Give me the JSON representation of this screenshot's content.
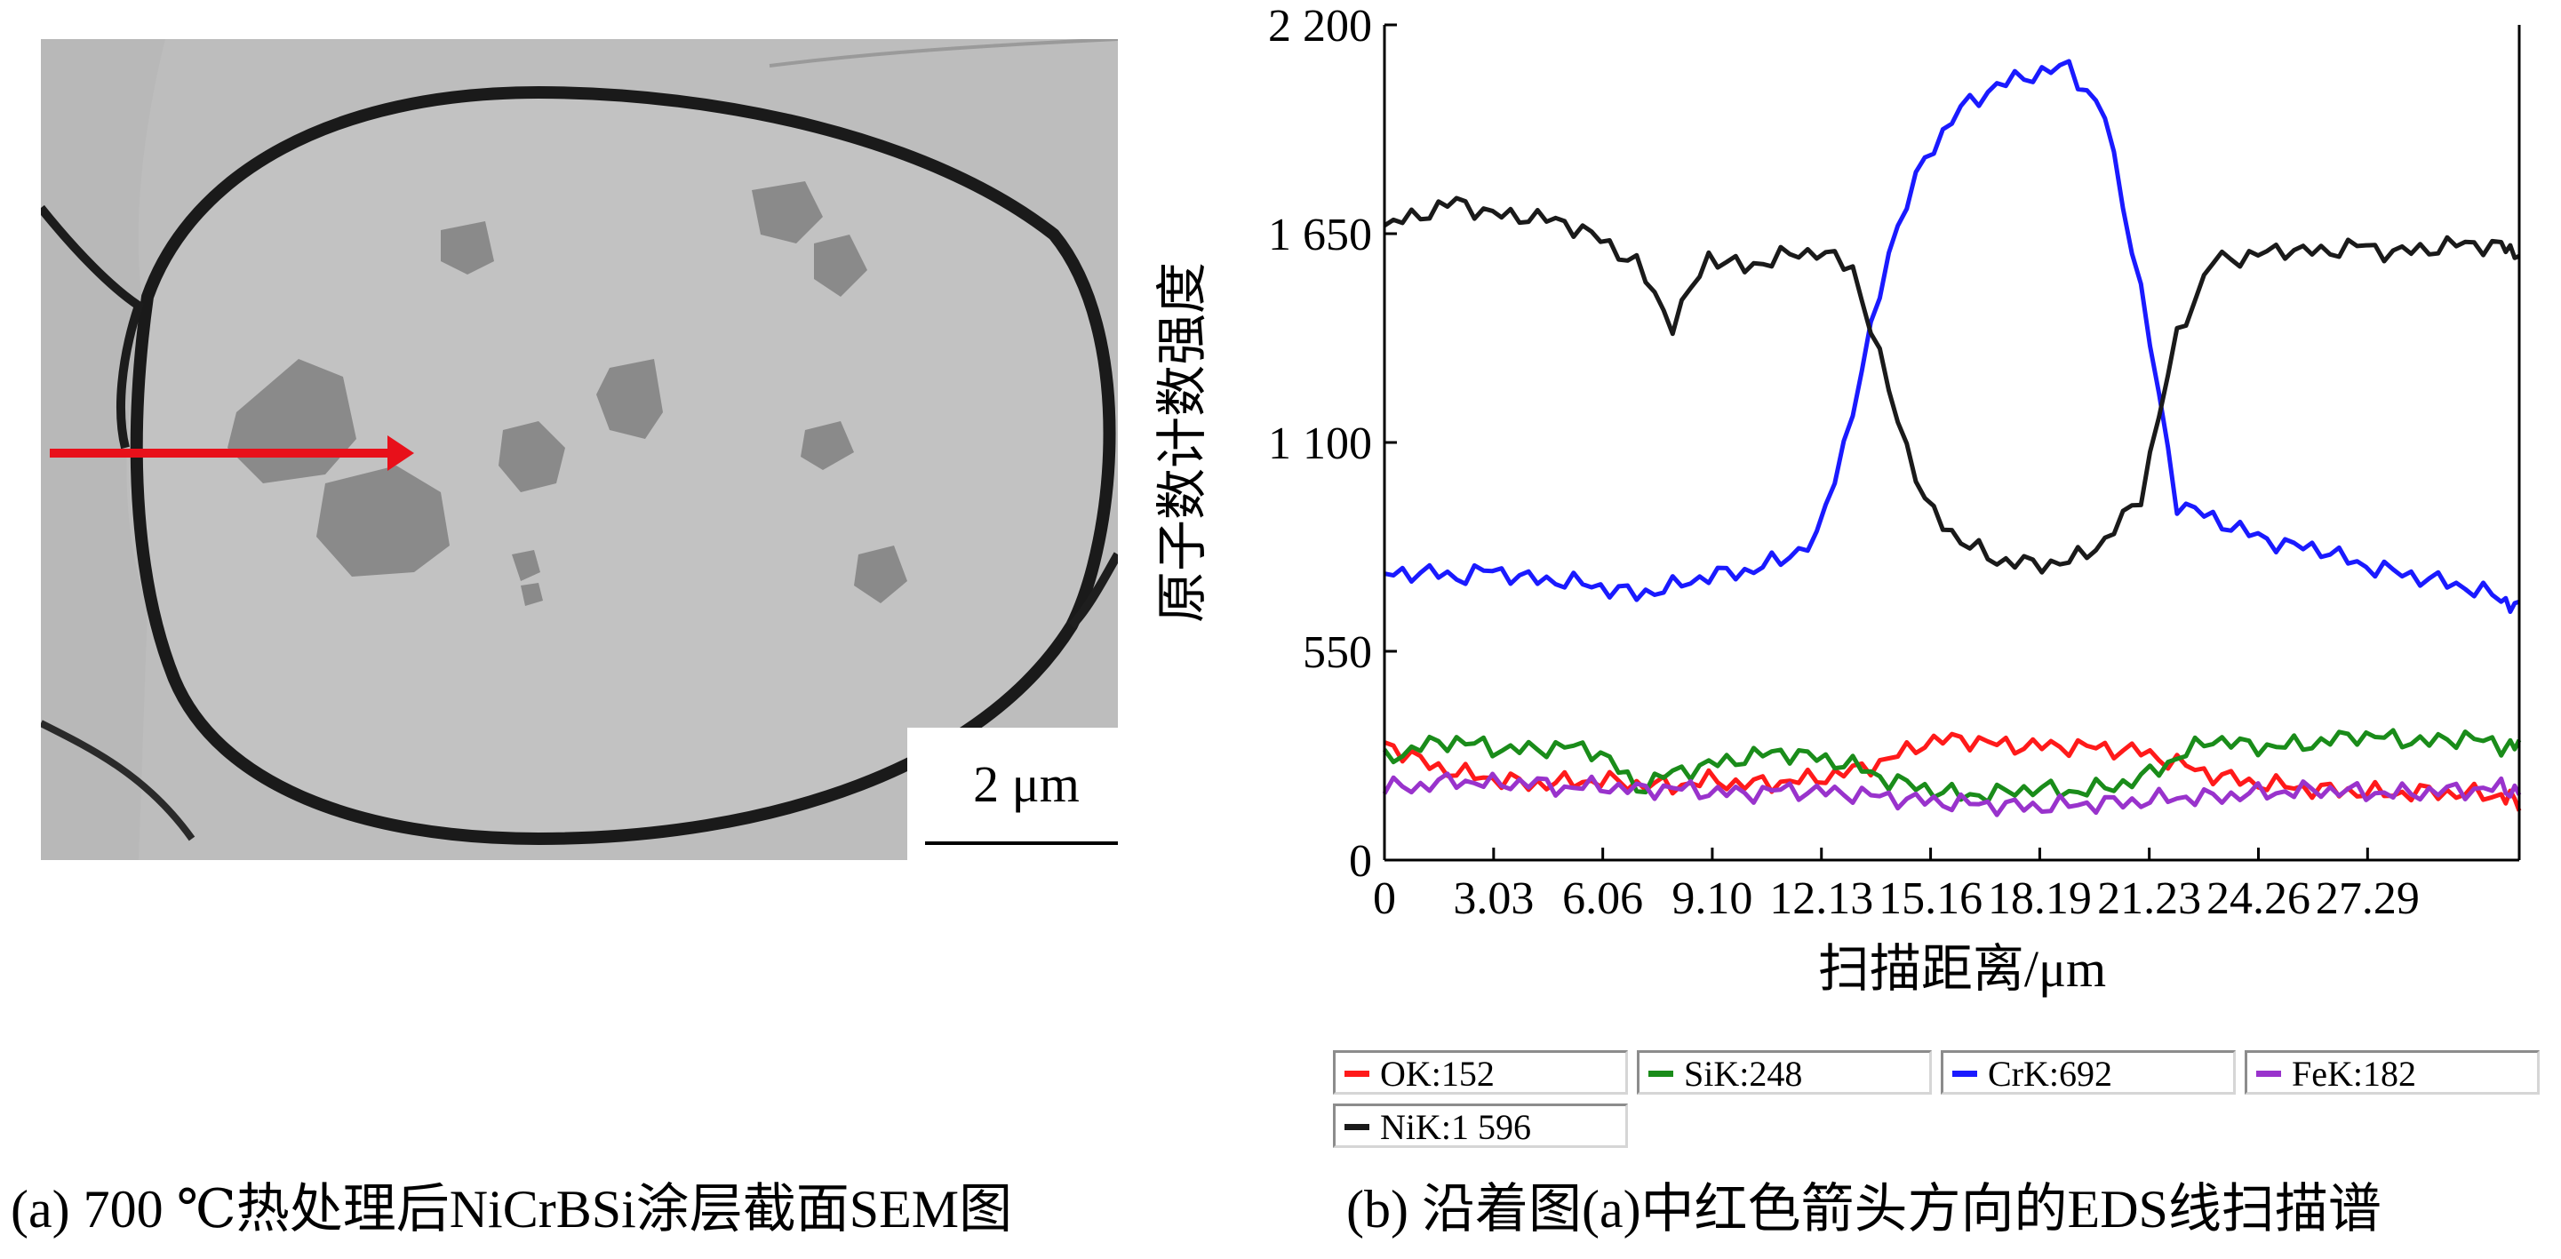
{
  "sem": {
    "scale_bar_label": "2 μm",
    "arrow_color": "#e8101a"
  },
  "captions": {
    "a": "(a) 700 ℃热处理后NiCrBSi涂层截面SEM图",
    "b": "(b) 沿着图(a)中红色箭头方向的EDS线扫描谱"
  },
  "chart_data": {
    "type": "line",
    "xlabel": "扫描距离/μm",
    "ylabel": "原子数计数强度",
    "xlim": [
      0,
      31.5
    ],
    "ylim": [
      0,
      2200
    ],
    "x_ticks": [
      0,
      3.03,
      6.06,
      9.1,
      12.13,
      15.16,
      18.19,
      21.23,
      24.26,
      27.29
    ],
    "x_tick_labels": [
      "0",
      "3.03",
      "6.06",
      "9.10",
      "12.13",
      "15.16",
      "18.19",
      "21.23",
      "24.26",
      "27.29"
    ],
    "y_ticks": [
      0,
      550,
      1100,
      1650,
      2200
    ],
    "y_tick_labels": [
      "0",
      "550",
      "1 100",
      "1 650",
      "2 200"
    ],
    "x": [
      0,
      1,
      2,
      3,
      4,
      5,
      6,
      7,
      8,
      9,
      10,
      11,
      12,
      13,
      14,
      15,
      16,
      17,
      18,
      19,
      20,
      21,
      22,
      23,
      24,
      25,
      26,
      27,
      28,
      29,
      30,
      31,
      31.5
    ],
    "series": [
      {
        "name": "OK:152",
        "color": "#ff1a1a",
        "values": [
          310,
          260,
          230,
          215,
          200,
          205,
          210,
          200,
          195,
          210,
          200,
          205,
          215,
          235,
          265,
          310,
          320,
          305,
          300,
          300,
          295,
          285,
          255,
          225,
          205,
          195,
          185,
          180,
          175,
          180,
          175,
          170,
          150
        ]
      },
      {
        "name": "SiK:248",
        "color": "#1a8c1a",
        "values": [
          265,
          300,
          315,
          295,
          290,
          300,
          285,
          190,
          230,
          250,
          270,
          285,
          270,
          250,
          210,
          190,
          170,
          175,
          190,
          180,
          190,
          215,
          270,
          320,
          300,
          300,
          310,
          330,
          320,
          310,
          325,
          300,
          300
        ]
      },
      {
        "name": "CrK:692",
        "color": "#1a1aff",
        "values": [
          750,
          760,
          745,
          765,
          740,
          735,
          720,
          700,
          720,
          750,
          760,
          790,
          845,
          1180,
          1605,
          1850,
          1980,
          2040,
          2070,
          2090,
          1960,
          1500,
          940,
          900,
          860,
          830,
          820,
          780,
          760,
          740,
          720,
          690,
          660
        ]
      },
      {
        "name": "FeK:182",
        "color": "#9933cc",
        "values": [
          190,
          195,
          210,
          200,
          205,
          190,
          195,
          185,
          190,
          180,
          175,
          185,
          180,
          175,
          165,
          155,
          150,
          145,
          140,
          145,
          150,
          155,
          165,
          165,
          175,
          180,
          185,
          180,
          175,
          180,
          185,
          190,
          180
        ]
      },
      {
        "name": "NiK:1 596",
        "color": "#1a1a1a",
        "values": [
          1670,
          1700,
          1735,
          1700,
          1695,
          1680,
          1635,
          1570,
          1410,
          1590,
          1560,
          1590,
          1605,
          1560,
          1240,
          940,
          840,
          790,
          780,
          785,
          840,
          960,
          1380,
          1580,
          1590,
          1610,
          1600,
          1620,
          1600,
          1610,
          1625,
          1615,
          1600
        ]
      }
    ],
    "legend": [
      "OK:152",
      "SiK:248",
      "CrK:692",
      "FeK:182",
      "NiK:1 596"
    ],
    "legend_position": "bottom",
    "grid": false
  }
}
